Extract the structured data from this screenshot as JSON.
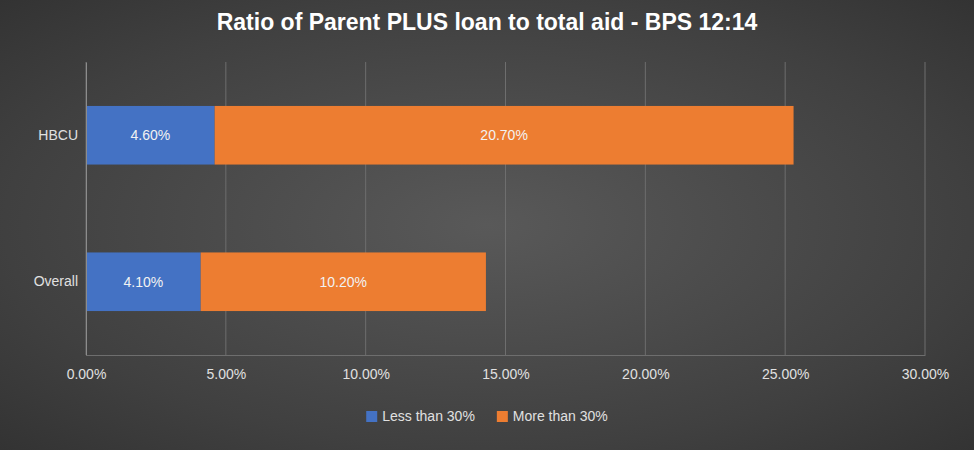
{
  "chart_data": {
    "type": "bar",
    "title": "Ratio of Parent PLUS loan to total aid - BPS 12:14",
    "orientation": "horizontal",
    "stacked": true,
    "grid": true,
    "legend": "bottom",
    "data_labels": true,
    "categories": [
      "HBCU",
      "Overall"
    ],
    "series": [
      {
        "name": "Less than 30%",
        "color": "#4472c4",
        "values": [
          4.6,
          4.1
        ],
        "value_labels": [
          "4.60%",
          "4.10%"
        ]
      },
      {
        "name": "More than 30%",
        "color": "#ed7d31",
        "values": [
          20.7,
          10.2
        ],
        "value_labels": [
          "20.70%",
          "10.20%"
        ]
      }
    ],
    "xlim": [
      0,
      30
    ],
    "xticks": [
      {
        "value": 0,
        "label": "0.00%"
      },
      {
        "value": 5,
        "label": "5.00%"
      },
      {
        "value": 10,
        "label": "10.00%"
      },
      {
        "value": 15,
        "label": "15.00%"
      },
      {
        "value": 20,
        "label": "20.00%"
      },
      {
        "value": 25,
        "label": "25.00%"
      },
      {
        "value": 30,
        "label": "30.00%"
      }
    ]
  }
}
